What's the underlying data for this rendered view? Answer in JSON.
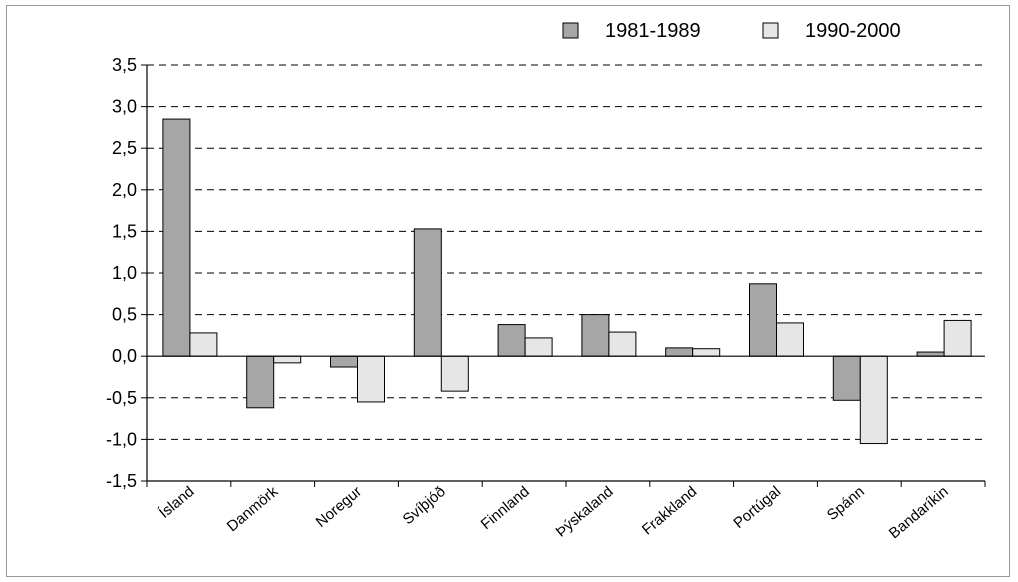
{
  "chart_data": {
    "type": "bar",
    "categories": [
      "Ísland",
      "Danmörk",
      "Noregur",
      "Svíþjóð",
      "Finnland",
      "Þýskaland",
      "Frakkland",
      "Portúgal",
      "Spánn",
      "Bandaríkin"
    ],
    "series": [
      {
        "name": "1981-1989",
        "color": "#a6a6a6",
        "values": [
          2.85,
          -0.62,
          -0.13,
          1.53,
          0.38,
          0.5,
          0.1,
          0.87,
          -0.53,
          0.05
        ]
      },
      {
        "name": "1990-2000",
        "color": "#e6e6e6",
        "values": [
          0.28,
          -0.08,
          -0.55,
          -0.42,
          0.22,
          0.29,
          0.09,
          0.4,
          -1.05,
          0.43
        ]
      }
    ],
    "ylim": [
      -1.5,
      3.5
    ],
    "yticks": [
      -1.5,
      -1.0,
      -0.5,
      0.0,
      0.5,
      1.0,
      1.5,
      2.0,
      2.5,
      3.0,
      3.5
    ],
    "ytick_labels": [
      "-1,5",
      "-1,0",
      "-0,5",
      "0,0",
      "0,5",
      "1,0",
      "1,5",
      "2,0",
      "2,5",
      "3,0",
      "3,5"
    ],
    "grid": "horizontal-dashed",
    "legend": "top-right",
    "title": "",
    "xlabel": "",
    "ylabel": ""
  }
}
